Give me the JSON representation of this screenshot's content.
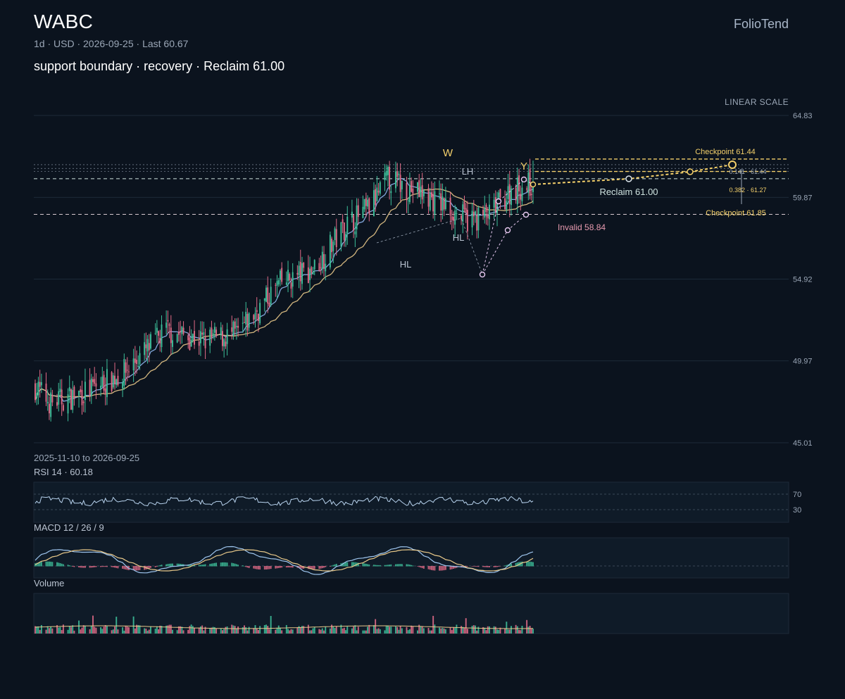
{
  "header": {
    "ticker": "WABC",
    "brand": "FolioTend",
    "meta": "1d · USD · 2026-09-25 · Last 60.67",
    "subtitle": "support boundary · recovery · Reclaim 61.00",
    "scale_label": "LINEAR SCALE",
    "date_range": "2025-11-10 to 2026-09-25"
  },
  "panels": {
    "rsi_label": "RSI 14 · 60.18",
    "rsi_levels": [
      "70",
      "30"
    ],
    "macd_label": "MACD 12 / 26 / 9",
    "volume_label": "Volume"
  },
  "colors": {
    "background": "#0b131e",
    "up": "#3dbf9a",
    "down": "#e06a86",
    "ma_fast": "#8fb8f0",
    "ma_slow": "#e9c98a",
    "accent_gold": "#f3cf6a",
    "reclaim": "#cfe3e0",
    "invalid": "#e89bb0",
    "pattern": "#e6c8f0"
  },
  "chart_data": {
    "type": "candlestick",
    "symbol": "WABC",
    "interval": "1d",
    "currency": "USD",
    "x_range": [
      "2025-11-10",
      "2026-09-25"
    ],
    "y_ticks": [
      "64.83",
      "59.87",
      "54.92",
      "49.97",
      "45.01"
    ],
    "ylim": [
      45.01,
      64.83
    ],
    "last": 60.67,
    "path_summary": [
      {
        "date": "2025-11-10",
        "close": 48.4
      },
      {
        "date": "2025-11-20",
        "close": 47.4
      },
      {
        "date": "2025-12-10",
        "close": 48.0
      },
      {
        "date": "2026-01-05",
        "close": 49.2
      },
      {
        "date": "2026-02-02",
        "close": 51.8
      },
      {
        "date": "2026-02-26",
        "close": 51.2
      },
      {
        "date": "2026-03-20",
        "close": 51.6
      },
      {
        "date": "2026-04-15",
        "close": 54.6
      },
      {
        "date": "2026-05-08",
        "close": 55.6
      },
      {
        "date": "2026-05-28",
        "close": 58.2
      },
      {
        "date": "2026-06-12",
        "close": 59.2
      },
      {
        "date": "2026-06-24",
        "close": 61.0
      },
      {
        "date": "2026-07-10",
        "close": 60.3
      },
      {
        "date": "2026-07-28",
        "close": 59.5
      },
      {
        "date": "2026-08-14",
        "close": 58.5
      },
      {
        "date": "2026-08-28",
        "close": 58.8
      },
      {
        "date": "2026-09-12",
        "close": 60.4
      },
      {
        "date": "2026-09-25",
        "close": 60.67
      }
    ],
    "levels": [
      {
        "label": "Reclaim 61.00",
        "value": 61.0,
        "style": "dashed"
      },
      {
        "label": "Invalid 58.84",
        "value": 58.84,
        "style": "dashed"
      },
      {
        "label": "Checkpoint 61.44",
        "value": 61.44,
        "style": "dashed"
      },
      {
        "label": "Checkpoint 61.85",
        "value": 61.85,
        "style": "dashed"
      }
    ],
    "fib_labels": [
      "0.141 · 61.44",
      "0.382 · 61.27"
    ],
    "pattern_labels": [
      "HL",
      "HL",
      "LH",
      "W",
      "Y"
    ],
    "indicators": {
      "rsi": {
        "period": 14,
        "last": 60.18,
        "levels": [
          70,
          30
        ]
      },
      "macd": {
        "fast": 12,
        "slow": 26,
        "signal": 9
      }
    },
    "legend": "none",
    "grid": true
  }
}
